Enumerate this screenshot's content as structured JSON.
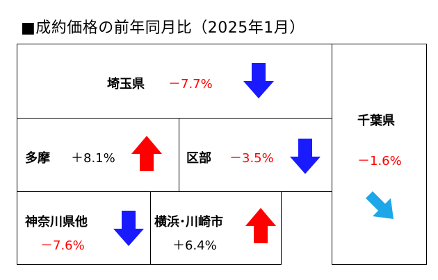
{
  "title": "■成約価格の前年同月比（2025年1月）",
  "colors": {
    "negative": "#ff0000",
    "positive": "#000000",
    "down_arrow": "#1a1aff",
    "up_arrow": "#ff0000",
    "diag_arrow": "#1ea7e8"
  },
  "regions": {
    "saitama": {
      "name": "埼玉県",
      "change": "－7.7%",
      "arrow": "down-arrow-icon"
    },
    "chiba": {
      "name": "千葉県",
      "change": "－1.6%",
      "arrow": "down-right-arrow-icon"
    },
    "tama": {
      "name": "多摩",
      "change": "＋8.1%",
      "arrow": "up-arrow-icon"
    },
    "kubu": {
      "name": "区部",
      "change": "－3.5%",
      "arrow": "down-arrow-icon"
    },
    "kanagawa": {
      "name": "神奈川県他",
      "change": "－7.6%",
      "arrow": "down-arrow-icon"
    },
    "yokohama": {
      "name": "横浜･川崎市",
      "change": "＋6.4%",
      "arrow": "up-arrow-icon"
    }
  }
}
